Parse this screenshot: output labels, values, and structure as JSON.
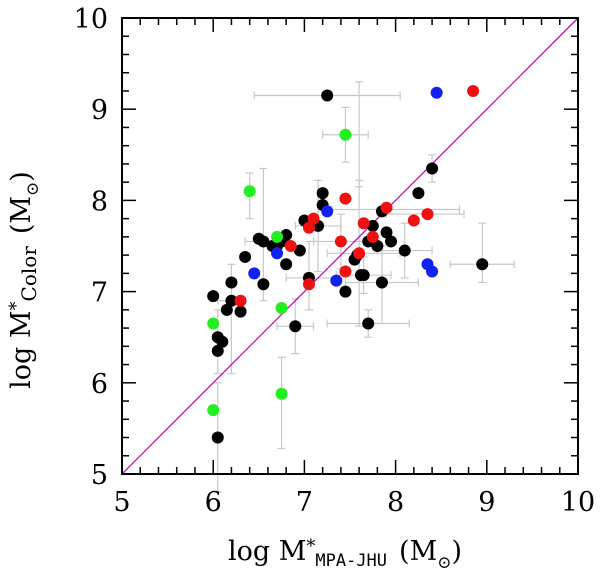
{
  "chart_data": {
    "type": "scatter",
    "title": "",
    "xlabel": {
      "prefix": "log M",
      "star": "*",
      "subscript": "MPA-JHU",
      "unit": "(M",
      "unit_sub": "⊙",
      "unit_close": ")"
    },
    "ylabel": {
      "prefix": "log M",
      "star": "*",
      "subscript": "Color",
      "unit": "(M",
      "unit_sub": "⊙",
      "unit_close": ")"
    },
    "xlim": [
      5,
      10
    ],
    "ylim": [
      5,
      10
    ],
    "xticks": [
      "5",
      "6",
      "7",
      "8",
      "9",
      "10"
    ],
    "yticks": [
      "5",
      "6",
      "7",
      "8",
      "9",
      "10"
    ],
    "one_to_one_line": {
      "from": [
        5,
        5
      ],
      "to": [
        10,
        10
      ],
      "color": "#cc00cc"
    },
    "colors": {
      "black": "#000000",
      "red": "#ee1111",
      "green": "#22ee22",
      "blue": "#1122ee",
      "errorbar": "#c8c8c8"
    },
    "series": [
      {
        "name": "black",
        "points": [
          [
            6.0,
            6.95
          ],
          [
            6.05,
            6.5
          ],
          [
            6.1,
            6.45
          ],
          [
            6.05,
            6.35
          ],
          [
            6.05,
            5.4
          ],
          [
            6.15,
            6.8
          ],
          [
            6.2,
            6.9
          ],
          [
            6.2,
            7.1
          ],
          [
            6.3,
            6.78
          ],
          [
            6.35,
            7.38
          ],
          [
            6.5,
            7.58
          ],
          [
            6.55,
            7.55
          ],
          [
            6.55,
            7.08
          ],
          [
            6.65,
            7.5
          ],
          [
            6.7,
            7.5
          ],
          [
            6.75,
            7.55
          ],
          [
            6.8,
            7.62
          ],
          [
            6.8,
            7.3
          ],
          [
            6.9,
            6.62
          ],
          [
            6.95,
            7.45
          ],
          [
            7.0,
            7.78
          ],
          [
            7.05,
            7.15
          ],
          [
            7.15,
            7.72
          ],
          [
            7.2,
            7.95
          ],
          [
            7.2,
            8.08
          ],
          [
            7.25,
            9.15
          ],
          [
            7.45,
            7.0
          ],
          [
            7.55,
            7.35
          ],
          [
            7.65,
            7.18
          ],
          [
            7.7,
            6.65
          ],
          [
            7.7,
            7.55
          ],
          [
            7.75,
            7.72
          ],
          [
            7.8,
            7.5
          ],
          [
            7.85,
            7.1
          ],
          [
            7.85,
            7.88
          ],
          [
            7.9,
            7.65
          ],
          [
            7.95,
            7.55
          ],
          [
            8.1,
            7.45
          ],
          [
            8.25,
            8.08
          ],
          [
            8.4,
            8.35
          ],
          [
            8.95,
            7.3
          ],
          [
            7.58,
            7.4
          ],
          [
            7.62,
            7.18
          ]
        ]
      },
      {
        "name": "red",
        "points": [
          [
            6.3,
            6.9
          ],
          [
            6.85,
            7.5
          ],
          [
            7.05,
            7.7
          ],
          [
            7.05,
            7.08
          ],
          [
            7.1,
            7.8
          ],
          [
            7.4,
            7.55
          ],
          [
            7.45,
            7.22
          ],
          [
            7.45,
            8.02
          ],
          [
            7.6,
            7.42
          ],
          [
            7.65,
            7.75
          ],
          [
            7.75,
            7.6
          ],
          [
            7.9,
            7.92
          ],
          [
            8.2,
            7.78
          ],
          [
            8.35,
            7.85
          ],
          [
            8.85,
            9.2
          ]
        ]
      },
      {
        "name": "green",
        "points": [
          [
            6.0,
            6.65
          ],
          [
            6.0,
            5.7
          ],
          [
            6.4,
            8.1
          ],
          [
            6.7,
            7.6
          ],
          [
            6.75,
            6.82
          ],
          [
            6.75,
            5.88
          ],
          [
            7.45,
            8.72
          ]
        ]
      },
      {
        "name": "blue",
        "points": [
          [
            6.45,
            7.2
          ],
          [
            6.7,
            7.42
          ],
          [
            7.25,
            7.88
          ],
          [
            7.35,
            7.12
          ],
          [
            8.35,
            7.3
          ],
          [
            8.4,
            7.22
          ],
          [
            8.45,
            9.18
          ]
        ]
      }
    ],
    "errorbars": [
      {
        "x": 7.25,
        "y": 9.15,
        "xerr": [
          0.8,
          0.8
        ],
        "yerr": [
          0.0,
          0.0
        ]
      },
      {
        "x": 7.45,
        "y": 8.72,
        "xerr": [
          0.25,
          0.25
        ],
        "yerr": [
          0.3,
          0.3
        ]
      },
      {
        "x": 7.6,
        "y": 8.7,
        "xerr": [
          0.0,
          0.0
        ],
        "yerr": [
          0.55,
          0.6
        ]
      },
      {
        "x": 8.0,
        "y": 7.9,
        "xerr": [
          0.7,
          0.7
        ],
        "yerr": [
          0.0,
          0.0
        ]
      },
      {
        "x": 8.4,
        "y": 8.35,
        "xerr": [
          0.0,
          0.0
        ],
        "yerr": [
          0.15,
          0.15
        ]
      },
      {
        "x": 8.95,
        "y": 7.3,
        "xerr": [
          0.35,
          0.35
        ],
        "yerr": [
          0.2,
          0.45
        ]
      },
      {
        "x": 6.55,
        "y": 7.55,
        "xerr": [
          0.2,
          0.2
        ],
        "yerr": [
          0.65,
          0.8
        ]
      },
      {
        "x": 6.4,
        "y": 8.1,
        "xerr": [
          0.05,
          0.05
        ],
        "yerr": [
          0.3,
          0.2
        ]
      },
      {
        "x": 6.2,
        "y": 6.9,
        "xerr": [
          0.15,
          0.15
        ],
        "yerr": [
          0.8,
          0.4
        ]
      },
      {
        "x": 6.05,
        "y": 6.5,
        "xerr": [
          0.05,
          0.05
        ],
        "yerr": [
          0.4,
          0.3
        ]
      },
      {
        "x": 6.9,
        "y": 6.62,
        "xerr": [
          0.2,
          0.2
        ],
        "yerr": [
          0.3,
          0.3
        ]
      },
      {
        "x": 7.05,
        "y": 7.15,
        "xerr": [
          0.25,
          0.3
        ],
        "yerr": [
          0.35,
          0.4
        ]
      },
      {
        "x": 7.15,
        "y": 7.72,
        "xerr": [
          0.25,
          0.25
        ],
        "yerr": [
          0.5,
          0.5
        ]
      },
      {
        "x": 7.7,
        "y": 6.65,
        "xerr": [
          0.45,
          0.45
        ],
        "yerr": [
          0.15,
          0.15
        ]
      },
      {
        "x": 7.6,
        "y": 7.42,
        "xerr": [
          0.35,
          0.45
        ],
        "yerr": [
          0.8,
          0.8
        ]
      },
      {
        "x": 7.85,
        "y": 7.1,
        "xerr": [
          0.4,
          0.4
        ],
        "yerr": [
          0.45,
          0.4
        ]
      },
      {
        "x": 8.35,
        "y": 7.85,
        "xerr": [
          0.45,
          0.4
        ],
        "yerr": [
          0.0,
          0.0
        ]
      },
      {
        "x": 7.65,
        "y": 7.18,
        "xerr": [
          0.3,
          0.3
        ],
        "yerr": [
          0.2,
          0.2
        ]
      },
      {
        "x": 6.75,
        "y": 5.88,
        "xerr": [
          0.05,
          0.05
        ],
        "yerr": [
          0.6,
          0.4
        ]
      },
      {
        "x": 6.05,
        "y": 5.4,
        "xerr": [
          0.05,
          0.05
        ],
        "yerr": [
          0.6,
          0.6
        ]
      },
      {
        "x": 7.4,
        "y": 7.55,
        "xerr": [
          0.3,
          0.3
        ],
        "yerr": [
          0.3,
          0.3
        ]
      },
      {
        "x": 8.1,
        "y": 7.45,
        "xerr": [
          0.3,
          0.3
        ],
        "yerr": [
          0.3,
          0.3
        ]
      }
    ]
  }
}
